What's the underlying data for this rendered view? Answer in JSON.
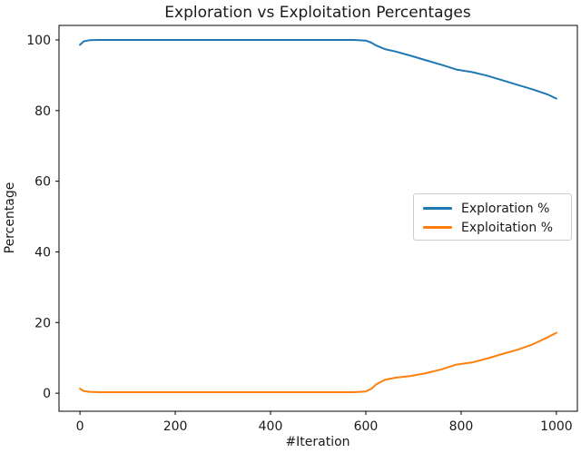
{
  "chart_data": {
    "type": "line",
    "title": "Exploration vs Exploitation Percentages",
    "xlabel": "#Iteration",
    "ylabel": "Percentage",
    "x": [
      0,
      8,
      20,
      40,
      75,
      150,
      250,
      350,
      450,
      525,
      575,
      600,
      612,
      622,
      640,
      663,
      695,
      727,
      760,
      790,
      823,
      854,
      886,
      918,
      950,
      981,
      1000
    ],
    "series": [
      {
        "name": "Exploration %",
        "color": "#1f77b4",
        "values": [
          98.6,
          99.6,
          99.9,
          100.0,
          100.0,
          100.0,
          100.0,
          100.0,
          100.0,
          100.0,
          100.0,
          99.8,
          99.2,
          98.4,
          97.4,
          96.7,
          95.5,
          94.2,
          92.9,
          91.6,
          90.9,
          89.9,
          88.6,
          87.3,
          86.0,
          84.6,
          83.4
        ]
      },
      {
        "name": "Exploitation %",
        "color": "#ff7f0e",
        "values": [
          1.3,
          0.6,
          0.4,
          0.3,
          0.3,
          0.3,
          0.3,
          0.3,
          0.3,
          0.3,
          0.3,
          0.5,
          1.3,
          2.5,
          3.8,
          4.4,
          4.9,
          5.7,
          6.8,
          8.1,
          8.7,
          9.8,
          11.1,
          12.3,
          13.8,
          15.8,
          17.1
        ]
      }
    ],
    "xlim": [
      -44,
      1044
    ],
    "ylim": [
      -5.1,
      104.1
    ],
    "xticks": [
      0,
      200,
      400,
      600,
      800,
      1000
    ],
    "yticks": [
      0,
      20,
      40,
      60,
      80,
      100
    ],
    "grid": false,
    "legend_position": "center right",
    "axis_color": "#000000",
    "background_color": "#ffffff"
  }
}
